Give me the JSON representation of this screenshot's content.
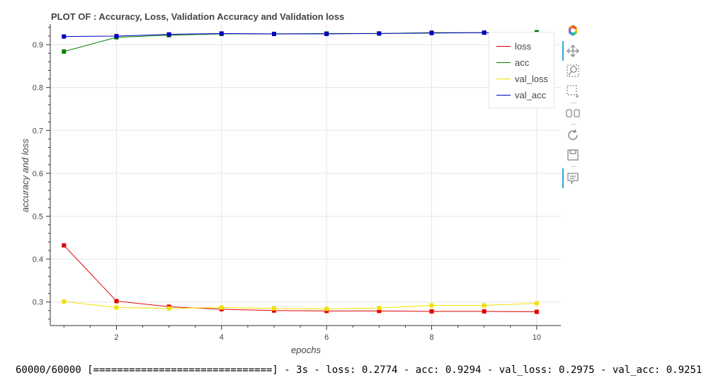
{
  "chart_data": {
    "type": "line",
    "title": "PLOT OF : Accuracy, Loss, Validation Accuracy and Validation loss",
    "xlabel": "epochs",
    "ylabel": "accuracy and loss",
    "x": [
      1,
      2,
      3,
      4,
      5,
      6,
      7,
      8,
      9,
      10
    ],
    "xlim": [
      0.74,
      10.46
    ],
    "ylim": [
      0.245,
      0.948
    ],
    "xticks": [
      2,
      4,
      6,
      8,
      10
    ],
    "yticks": [
      0.3,
      0.4,
      0.5,
      0.6,
      0.7,
      0.8,
      0.9
    ],
    "grid": true,
    "legend_position": "top-right",
    "series": [
      {
        "name": "loss",
        "color": "#e00000",
        "marker": "square",
        "values": [
          0.432,
          0.302,
          0.289,
          0.283,
          0.28,
          0.279,
          0.279,
          0.278,
          0.278,
          0.277
        ]
      },
      {
        "name": "acc",
        "color": "#008000",
        "marker": "square",
        "values": [
          0.884,
          0.917,
          0.922,
          0.925,
          0.925,
          0.926,
          0.926,
          0.928,
          0.928,
          0.929
        ]
      },
      {
        "name": "val_loss",
        "color": "#f0e000",
        "marker": "square",
        "values": [
          0.301,
          0.287,
          0.285,
          0.287,
          0.285,
          0.284,
          0.286,
          0.292,
          0.292,
          0.297
        ]
      },
      {
        "name": "val_acc",
        "color": "#0000c0",
        "marker": "square",
        "values": [
          0.919,
          0.92,
          0.924,
          0.926,
          0.925,
          0.925,
          0.926,
          0.927,
          0.928,
          0.925
        ]
      }
    ]
  },
  "toolbar": {
    "tools": [
      "bokeh-logo-icon",
      "pan-icon",
      "wheel-zoom-icon",
      "box-zoom-icon",
      "box-select-icon",
      "reset-icon",
      "save-icon",
      "hover-icon"
    ]
  },
  "console": {
    "text": "60000/60000 [==============================] - 3s - loss: 0.2774 - acc: 0.9294 - val_loss: 0.2975 - val_acc: 0.9251"
  }
}
